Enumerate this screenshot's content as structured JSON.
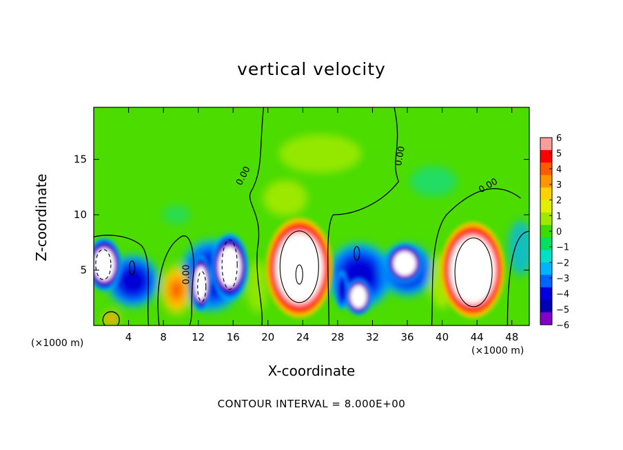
{
  "chart_data": {
    "type": "heatmap",
    "title": "vertical velocity",
    "xlabel": "X-coordinate",
    "ylabel": "Z-coordinate",
    "x_unit": "(×1000 m)",
    "x_ticks": [
      4,
      8,
      12,
      16,
      20,
      24,
      28,
      32,
      36,
      40,
      44,
      48
    ],
    "y_ticks": [
      5,
      10,
      15
    ],
    "xlim": [
      0,
      50
    ],
    "ylim": [
      0,
      19.7
    ],
    "contour_interval_label": "CONTOUR INTERVAL = 8.000E+00",
    "contour_labels": [
      "0.00",
      "0.00",
      "0.00",
      "0.00"
    ],
    "colorbar": {
      "ticks": [
        "6",
        "5",
        "4",
        "3",
        "2",
        "1",
        "0",
        "−1",
        "−2",
        "−3",
        "−4",
        "−5",
        "−6"
      ],
      "colors": [
        "#ff9c9c",
        "#ff0000",
        "#ff5a00",
        "#ff9600",
        "#ffd200",
        "#e0f000",
        "#a0e800",
        "#3cdc00",
        "#00e060",
        "#00e0c8",
        "#00b4ff",
        "#0064ff",
        "#0000e0",
        "#0000b4",
        "#8200c8"
      ]
    },
    "features": [
      {
        "kind": "updraft",
        "x": 23.5,
        "z": 5.2,
        "max": "above 6"
      },
      {
        "kind": "updraft",
        "x": 43.5,
        "z": 5.0,
        "max": "above 6"
      },
      {
        "kind": "updraft",
        "x": 9.5,
        "z": 3.0,
        "max": 3
      },
      {
        "kind": "downdraft",
        "x": 1.2,
        "z": 5.5,
        "min": "below -6"
      },
      {
        "kind": "downdraft",
        "x": 15.5,
        "z": 5.5,
        "min": "below -6"
      },
      {
        "kind": "downdraft",
        "x": 12.3,
        "z": 3.5,
        "min": "below -6"
      },
      {
        "kind": "downdraft",
        "x": 30.5,
        "z": 2.5,
        "min": "below -6"
      },
      {
        "kind": "downdraft",
        "x": 35.5,
        "z": 5.5,
        "min": "below -6"
      }
    ]
  }
}
